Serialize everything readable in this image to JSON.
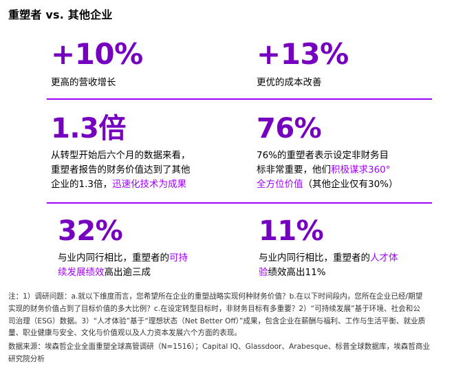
{
  "title": "重塑者 vs. 其他企业",
  "stats": [
    {
      "value": "+10%",
      "desc": "更高的营收增长"
    },
    {
      "value": "+13%",
      "desc": "更优的成本改善"
    },
    {
      "value": "1.3倍",
      "desc_lines": [
        "从转型开始后六个月的数据来看，",
        "重塑者报告的财务价值达到了其他"
      ],
      "desc_last_plain": "企业的1.3倍，",
      "desc_last_highlight": "迅速化技术为成果"
    },
    {
      "value": "76%",
      "desc_line1": "76%的重塑者表示设定非财务目",
      "desc_line2_plain": "标非常重要，他们",
      "desc_line2_highlight": "积极谋求360°",
      "desc_line3_highlight": "全方位价值",
      "desc_line3_plain": "（其他企业仅有30%）"
    },
    {
      "value": "32%",
      "desc_line1_plain": "与业内同行相比，重塑者的",
      "desc_line1_highlight": "可持",
      "desc_line2_highlight": "续发展绩效",
      "desc_line2_plain": "高出逾三成"
    },
    {
      "value": "11%",
      "desc_line1_plain": "与业内同行相比，重塑者的",
      "desc_line1_highlight": "人才体",
      "desc_line2_highlight": "验",
      "desc_line2_plain": "绩效高出11%"
    }
  ],
  "notes": [
    "注：1）调研问题：a.就以下维度而言，您希望所在企业的重塑战略实现何种财务价值？b.在以下时间段内，您所在企业已经/期望",
    "实现的财务价值占到了目标价值的多大比例？c.在设定转型目标时，非财务目标有多重要？2）“可持续发展”基于环境、社会和公",
    "司治理（ESG）数据。3）“人才体验”基于“理想状态（Net Better Off）”成果，包含企业在薪酬与福利、工作与生活平衡、就业质",
    "量、职业健康与安全、文化与价值观以及人力资本发展六个方面的表现。"
  ],
  "source": [
    "数据来源：埃森哲企业全面重塑全球高管调研（N=1516）；Capital IQ、Glassdoor、Arabesque、标普全球数据库，埃森哲商业",
    "研究院分析"
  ],
  "colors": {
    "accent_value": "#7500c0",
    "accent_highlight": "#a100ff",
    "divider": "#a100ff"
  }
}
